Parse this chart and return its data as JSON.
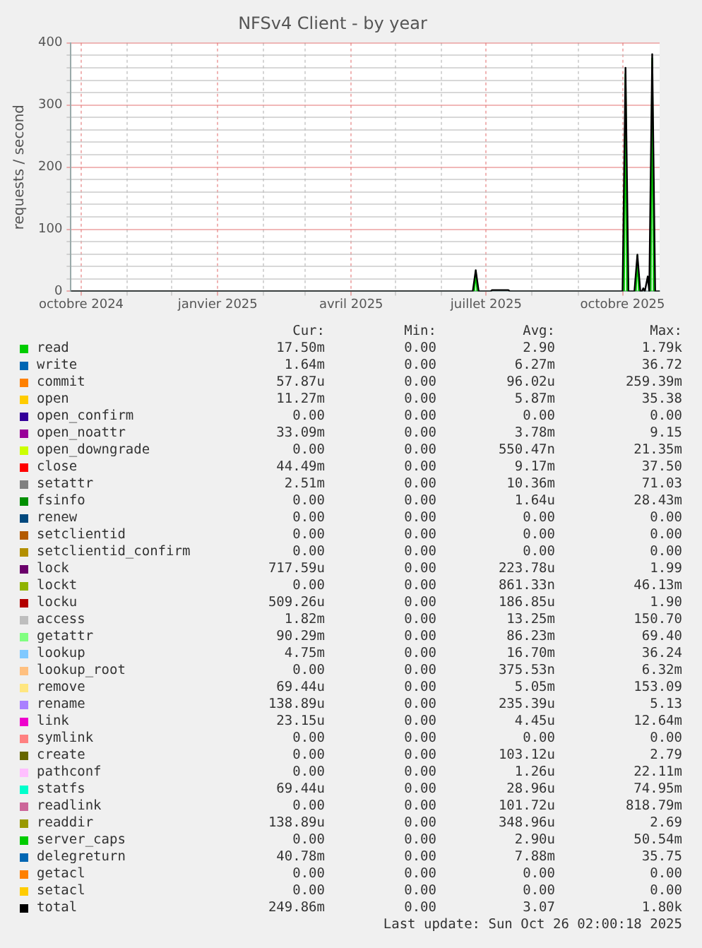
{
  "chart_data": {
    "type": "line",
    "title": "NFSv4 Client - by year",
    "ylabel": "requests / second",
    "xlim": [
      "2024-09-24",
      "2025-10-26"
    ],
    "xticks": [
      {
        "value": "2024-10-01",
        "label": "octobre 2024"
      },
      {
        "value": "2024-11-01",
        "label": null
      },
      {
        "value": "2024-12-01",
        "label": null
      },
      {
        "value": "2025-01-01",
        "label": "janvier 2025"
      },
      {
        "value": "2025-02-01",
        "label": null
      },
      {
        "value": "2025-03-01",
        "label": null
      },
      {
        "value": "2025-04-01",
        "label": "avril 2025"
      },
      {
        "value": "2025-05-01",
        "label": null
      },
      {
        "value": "2025-06-01",
        "label": null
      },
      {
        "value": "2025-07-01",
        "label": "juillet 2025"
      },
      {
        "value": "2025-08-01",
        "label": null
      },
      {
        "value": "2025-09-01",
        "label": null
      },
      {
        "value": "2025-10-01",
        "label": "octobre 2025"
      }
    ],
    "ylim": [
      0,
      400
    ],
    "yticks": [
      0,
      {
        "value": 20,
        "label": null
      },
      {
        "value": 40,
        "label": null
      },
      {
        "value": 60,
        "label": null
      },
      {
        "value": 80,
        "label": null
      },
      100,
      {
        "value": 120,
        "label": null
      },
      {
        "value": 140,
        "label": null
      },
      {
        "value": 160,
        "label": null
      },
      {
        "value": 180,
        "label": null
      },
      200,
      {
        "value": 220,
        "label": null
      },
      {
        "value": 240,
        "label": null
      },
      {
        "value": 260,
        "label": null
      },
      {
        "value": 280,
        "label": null
      },
      300,
      {
        "value": 320,
        "label": null
      },
      {
        "value": 340,
        "label": null
      },
      {
        "value": 360,
        "label": null
      },
      {
        "value": 380,
        "label": null
      },
      400
    ],
    "grid": true,
    "legend": "bottom",
    "marker": "none",
    "line_style": "solid",
    "series": [
      {
        "name": "read",
        "color": "#00cc00",
        "x": [
          "2025-06-23",
          "2025-06-24",
          "2025-06-25",
          "2025-08-01",
          "2025-10-02",
          "2025-10-03",
          "2025-10-04",
          "2025-10-07",
          "2025-10-10",
          "2025-10-11",
          "2025-10-12",
          "2025-10-16",
          "2025-10-20",
          "2025-10-21",
          "2025-10-22"
        ],
        "values": [
          0,
          32,
          0,
          null,
          0,
          350,
          0,
          null,
          0,
          57,
          0,
          null,
          0,
          375,
          0
        ]
      },
      {
        "name": "write",
        "color": "#0066b3"
      },
      {
        "name": "commit",
        "color": "#ff8000"
      },
      {
        "name": "open",
        "color": "#ffcc00"
      },
      {
        "name": "open_confirm",
        "color": "#330099"
      },
      {
        "name": "open_noattr",
        "color": "#990099"
      },
      {
        "name": "open_downgrade",
        "color": "#ccff00"
      },
      {
        "name": "close",
        "color": "#ff0000"
      },
      {
        "name": "setattr",
        "color": "#808080"
      },
      {
        "name": "fsinfo",
        "color": "#008f00"
      },
      {
        "name": "renew",
        "color": "#00487d"
      },
      {
        "name": "setclientid",
        "color": "#b35a00"
      },
      {
        "name": "setclientid_confirm",
        "color": "#b38f00"
      },
      {
        "name": "lock",
        "color": "#6b006b"
      },
      {
        "name": "lockt",
        "color": "#8fb300"
      },
      {
        "name": "locku",
        "color": "#b30000"
      },
      {
        "name": "access",
        "color": "#bebebe"
      },
      {
        "name": "getattr",
        "color": "#80ff80"
      },
      {
        "name": "lookup",
        "color": "#80c9ff"
      },
      {
        "name": "lookup_root",
        "color": "#ffc080"
      },
      {
        "name": "remove",
        "color": "#ffe680"
      },
      {
        "name": "rename",
        "color": "#aa80ff"
      },
      {
        "name": "link",
        "color": "#ee00cc"
      },
      {
        "name": "symlink",
        "color": "#ff8080"
      },
      {
        "name": "create",
        "color": "#666600"
      },
      {
        "name": "pathconf",
        "color": "#ffbfff"
      },
      {
        "name": "statfs",
        "color": "#00ffcc"
      },
      {
        "name": "readlink",
        "color": "#cc6699"
      },
      {
        "name": "readdir",
        "color": "#999900"
      },
      {
        "name": "server_caps",
        "color": "#00cc00"
      },
      {
        "name": "delegreturn",
        "color": "#0066b3"
      },
      {
        "name": "getacl",
        "color": "#ff8000"
      },
      {
        "name": "setacl",
        "color": "#ffcc00"
      },
      {
        "name": "total",
        "color": "#000000",
        "x": [
          "2024-09-24",
          "2025-06-22",
          "2025-06-24",
          "2025-06-26",
          "2025-07-04",
          "2025-07-05",
          "2025-07-16",
          "2025-07-17",
          "2025-10-01",
          "2025-10-03",
          "2025-10-05",
          "2025-10-09",
          "2025-10-11",
          "2025-10-13",
          "2025-10-14",
          "2025-10-15",
          "2025-10-16",
          "2025-10-18",
          "2025-10-19",
          "2025-10-21",
          "2025-10-23",
          "2025-10-26"
        ],
        "values": [
          0,
          0,
          34,
          0,
          0,
          2,
          2,
          0,
          0,
          360,
          0,
          0,
          59,
          0,
          0,
          5,
          0,
          24,
          0,
          382,
          0,
          0
        ]
      }
    ],
    "annotations": [
      "Cur:",
      "Min:",
      "Avg:",
      "Max:",
      "17.50m",
      "0.00",
      "2.90",
      "1.79k",
      "1.64m",
      "0.00",
      "6.27m",
      "36.72",
      "57.87u",
      "0.00",
      "96.02u",
      "259.39m",
      "11.27m",
      "0.00",
      "5.87m",
      "35.38",
      "0.00",
      "0.00",
      "0.00",
      "0.00",
      "33.09m",
      "0.00",
      "3.78m",
      "9.15",
      "0.00",
      "0.00",
      "550.47n",
      "21.35m",
      "44.49m",
      "0.00",
      "9.17m",
      "37.50",
      "2.51m",
      "0.00",
      "10.36m",
      "71.03",
      "0.00",
      "0.00",
      "1.64u",
      "28.43m",
      "0.00",
      "0.00",
      "0.00",
      "0.00",
      "0.00",
      "0.00",
      "0.00",
      "0.00",
      "0.00",
      "0.00",
      "0.00",
      "0.00",
      "717.59u",
      "0.00",
      "223.78u",
      "1.99",
      "0.00",
      "0.00",
      "861.33n",
      "46.13m",
      "509.26u",
      "0.00",
      "186.85u",
      "1.90",
      "1.82m",
      "0.00",
      "13.25m",
      "150.70",
      "90.29m",
      "0.00",
      "86.23m",
      "69.40",
      "4.75m",
      "0.00",
      "16.70m",
      "36.24",
      "0.00",
      "0.00",
      "375.53n",
      "6.32m",
      "69.44u",
      "0.00",
      "5.05m",
      "153.09",
      "138.89u",
      "0.00",
      "235.39u",
      "5.13",
      "23.15u",
      "0.00",
      "4.45u",
      "12.64m",
      "0.00",
      "0.00",
      "0.00",
      "0.00",
      "0.00",
      "0.00",
      "103.12u",
      "2.79",
      "0.00",
      "0.00",
      "1.26u",
      "22.11m",
      "69.44u",
      "0.00",
      "28.96u",
      "74.95m",
      "0.00",
      "0.00",
      "101.72u",
      "818.79m",
      "138.89u",
      "0.00",
      "348.96u",
      "2.69",
      "0.00",
      "0.00",
      "2.90u",
      "50.54m",
      "40.78m",
      "0.00",
      "7.88m",
      "35.75",
      "0.00",
      "0.00",
      "0.00",
      "0.00",
      "0.00",
      "0.00",
      "0.00",
      "0.00",
      "249.86m",
      "0.00",
      "3.07",
      "1.80k",
      "Last update: Sun Oct 26 02:00:18 2025"
    ]
  }
}
